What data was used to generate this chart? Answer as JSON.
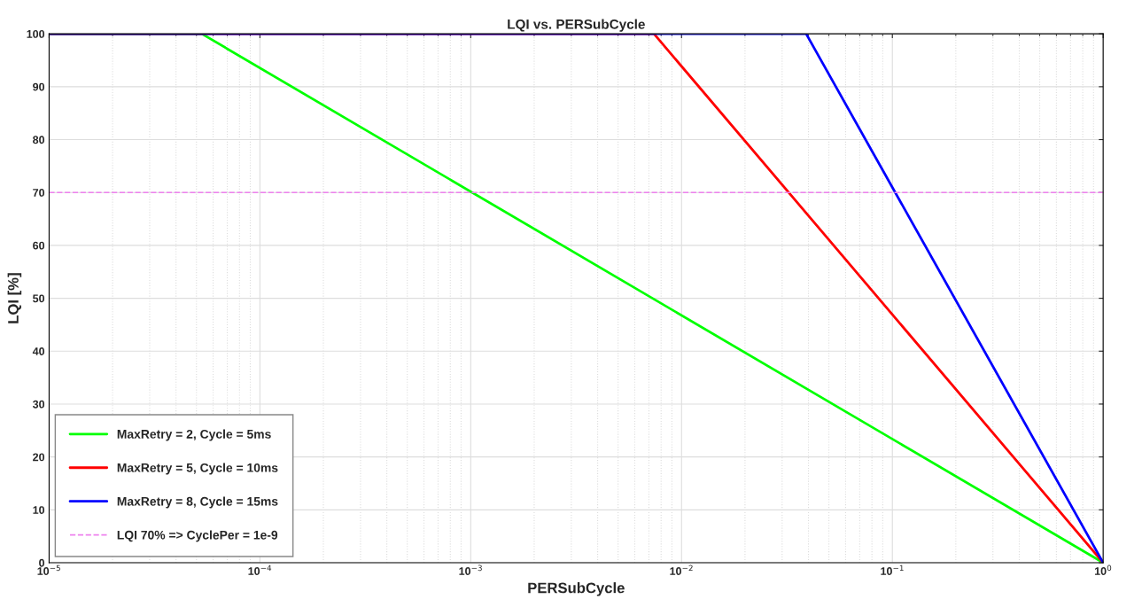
{
  "chart_data": {
    "type": "line",
    "title": "LQI vs. PERSubCycle",
    "xlabel": "PERSubCycle",
    "ylabel": "LQI [%]",
    "log": "x",
    "grid": true,
    "legend": "bottom left",
    "line_style": "solid",
    "xlim": [
      1e-05,
      1
    ],
    "ylim": [
      0,
      100
    ],
    "xticks": [
      {
        "value": 1e-05,
        "label": "10$^{−5}$"
      },
      {
        "value": 0.0001,
        "label": "10$^{−4}$"
      },
      {
        "value": 0.001,
        "label": "10$^{−3}$"
      },
      {
        "value": 0.01,
        "label": "10$^{−2}$"
      },
      {
        "value": 0.1,
        "label": "10$^{−1}$"
      },
      {
        "value": 1,
        "label": "10$^{0}$"
      }
    ],
    "yticks": [
      0,
      10,
      20,
      30,
      40,
      50,
      60,
      70,
      80,
      90,
      100
    ],
    "series": [
      {
        "name": "MaxRetry = 2, Cycle = 5ms",
        "color": "#00ff00",
        "x": [
          1e-05,
          5.3e-05,
          1
        ],
        "values": [
          100,
          100,
          0
        ]
      },
      {
        "name": "MaxRetry = 5, Cycle = 10ms",
        "color": "#ff0000",
        "x": [
          1e-05,
          0.0074,
          1
        ],
        "values": [
          100,
          100,
          0
        ]
      },
      {
        "name": "MaxRetry = 8, Cycle = 15ms",
        "color": "#0000ff",
        "x": [
          1e-05,
          0.039,
          1
        ],
        "values": [
          100,
          100,
          0
        ]
      }
    ],
    "ref_lines": [
      {
        "axis": "y",
        "value": 70,
        "label": "LQI 70% => CyclePer = 1e-9",
        "color": "#ee82ee",
        "line_style": "dashed"
      }
    ]
  }
}
